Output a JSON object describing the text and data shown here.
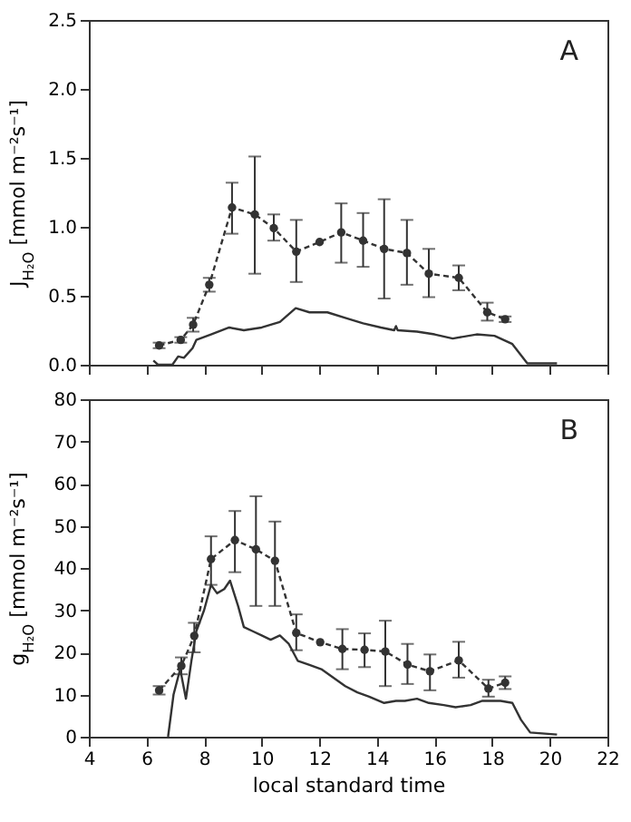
{
  "chart_data": [
    {
      "type": "line",
      "ylabel": "J$_{H₂O}$ [mmol m⁻²s⁻¹]",
      "annotations": [
        "A"
      ],
      "xlim": [
        4,
        22
      ],
      "xticks": [
        4,
        6,
        8,
        10,
        12,
        14,
        16,
        18,
        20,
        22
      ],
      "ylim": [
        0,
        2.5
      ],
      "yticks": [
        {
          "value": 0,
          "label": "0.0"
        },
        0.5,
        {
          "value": 1,
          "label": "1.0"
        },
        1.5,
        {
          "value": 2,
          "label": "2.0"
        },
        2.5
      ],
      "tick_labels": "y",
      "series": [
        {
          "color": "#333333",
          "marker": "circle",
          "line_style": "dashed",
          "x": [
            6.44,
            7.19,
            7.62,
            8.18,
            8.97,
            9.76,
            10.42,
            11.2,
            12.01,
            12.76,
            13.52,
            14.25,
            15.04,
            15.8,
            16.84,
            17.83,
            18.45
          ],
          "values": [
            0.14,
            0.18,
            0.29,
            0.58,
            1.14,
            1.09,
            0.99,
            0.82,
            0.89,
            0.96,
            0.9,
            0.84,
            0.81,
            0.66,
            0.63,
            0.38,
            0.33
          ],
          "errors": [
            0.02,
            0.02,
            0.05,
            0.05,
            [
              0.95,
              1.32
            ],
            [
              0.66,
              1.51
            ],
            [
              0.9,
              1.09
            ],
            [
              0.6,
              1.05
            ],
            null,
            [
              0.74,
              1.17
            ],
            [
              0.71,
              1.1
            ],
            [
              0.48,
              1.2
            ],
            [
              0.58,
              1.05
            ],
            [
              0.49,
              0.84
            ],
            [
              0.54,
              0.72
            ],
            [
              0.32,
              0.45
            ],
            0.02
          ]
        },
        {
          "color": "#333333",
          "marker": "none",
          "line_style": "solid",
          "x": [
            6.24,
            6.4,
            6.9,
            7.1,
            7.3,
            7.6,
            7.73,
            8.24,
            8.87,
            9.38,
            10.0,
            10.63,
            11.18,
            11.66,
            12.28,
            12.9,
            13.52,
            14.14,
            14.6,
            14.66,
            14.72,
            15.39,
            16.0,
            16.63,
            17.46,
            18.08,
            18.7,
            19.22,
            20.25
          ],
          "values": [
            0.03,
            0.0,
            0.0,
            0.06,
            0.05,
            0.12,
            0.18,
            0.22,
            0.27,
            0.25,
            0.27,
            0.31,
            0.41,
            0.38,
            0.38,
            0.34,
            0.3,
            0.27,
            0.25,
            0.28,
            0.25,
            0.24,
            0.22,
            0.19,
            0.22,
            0.21,
            0.15,
            0.01,
            0.01
          ]
        }
      ]
    },
    {
      "type": "line",
      "ylabel": "g$_{H₂O}$ [mmol m⁻²s⁻¹]",
      "xlabel": "local standard time",
      "annotations": [
        "B"
      ],
      "xlim": [
        4,
        22
      ],
      "xticks": [
        4,
        6,
        8,
        10,
        12,
        14,
        16,
        18,
        20,
        22
      ],
      "ylim": [
        0,
        80
      ],
      "yticks": [
        0,
        10,
        20,
        30,
        40,
        50,
        60,
        70,
        80
      ],
      "series": [
        {
          "color": "#333333",
          "marker": "circle",
          "line_style": "dashed",
          "x": [
            6.44,
            7.21,
            7.66,
            8.24,
            9.07,
            9.8,
            10.46,
            11.2,
            12.03,
            12.8,
            13.57,
            14.29,
            15.06,
            15.84,
            16.84,
            17.87,
            18.45
          ],
          "values": [
            11.0,
            16.8,
            23.9,
            42.1,
            46.6,
            44.4,
            41.7,
            24.6,
            22.4,
            20.8,
            20.6,
            20.2,
            17.1,
            15.5,
            18.1,
            11.4,
            12.8
          ],
          "errors": [
            1,
            2,
            [
              20,
              27
            ],
            [
              36,
              47.5
            ],
            [
              39,
              53.5
            ],
            [
              31,
              57
            ],
            [
              31,
              51
            ],
            [
              20.5,
              29
            ],
            null,
            [
              16,
              25.5
            ],
            [
              16.5,
              24.5
            ],
            [
              12,
              27.5
            ],
            [
              12.5,
              22
            ],
            [
              11,
              19.5
            ],
            [
              14,
              22.5
            ],
            [
              9.5,
              13.5
            ],
            1.5
          ]
        },
        {
          "color": "#333333",
          "marker": "none",
          "line_style": "solid",
          "x": [
            6.75,
            6.94,
            7.17,
            7.37,
            7.56,
            7.73,
            8.0,
            8.24,
            8.45,
            8.7,
            8.9,
            9.18,
            9.38,
            9.69,
            10.0,
            10.31,
            10.63,
            10.94,
            11.25,
            11.66,
            12.07,
            12.49,
            12.9,
            13.32,
            13.73,
            14.25,
            14.66,
            14.97,
            15.39,
            15.8,
            16.32,
            16.73,
            17.25,
            17.66,
            18.29,
            18.7,
            19.0,
            19.32,
            20.25
          ],
          "values": [
            0,
            10,
            16,
            9,
            18,
            25,
            30,
            36,
            34,
            35,
            37,
            31,
            26,
            25,
            24,
            23,
            24,
            22,
            18,
            17,
            16,
            14,
            12,
            10.5,
            9.5,
            8,
            8.5,
            8.5,
            9,
            8,
            7.5,
            7,
            7.5,
            8.5,
            8.5,
            8,
            4,
            1,
            0.5
          ]
        }
      ]
    }
  ]
}
